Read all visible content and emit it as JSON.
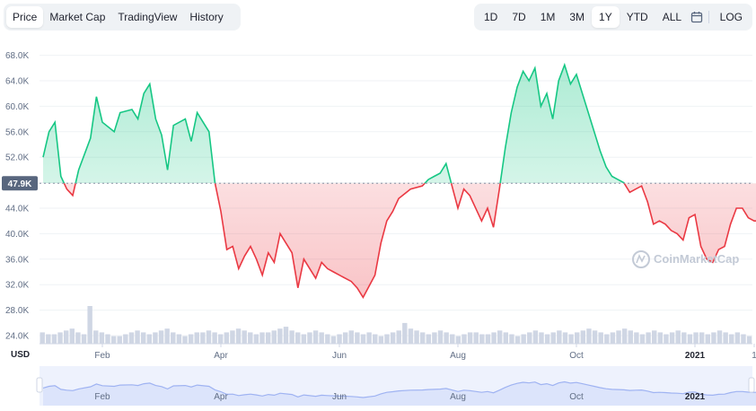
{
  "tabs": {
    "left": [
      "Price",
      "Market Cap",
      "TradingView",
      "History"
    ],
    "left_active": "Price",
    "right": [
      "1D",
      "7D",
      "1M",
      "3M",
      "1Y",
      "YTD",
      "ALL"
    ],
    "right_active": "1Y",
    "log_label": "LOG",
    "calendar_icon": "calendar-icon"
  },
  "watermark": "CoinMarketCap",
  "colors": {
    "up": "#16c784",
    "down": "#ea3943",
    "navigator": "#9fb3f2",
    "volume": "#cfd6e4"
  },
  "chart_data": {
    "type": "line",
    "currency_label": "USD",
    "baseline": 47.9,
    "baseline_label": "47.9K",
    "ylim": [
      24,
      70
    ],
    "y_ticks": [
      24,
      28,
      32,
      36,
      40,
      44,
      48,
      52,
      56,
      60,
      64,
      68
    ],
    "y_tick_labels": [
      "24.0K",
      "28.0K",
      "32.0K",
      "36.0K",
      "40.0K",
      "44.0K",
      "48.0K",
      "52.0K",
      "56.0K",
      "60.0K",
      "64.0K",
      "68.0K"
    ],
    "x_ticks": [
      {
        "label": "Feb",
        "x": 1.0,
        "bold": false
      },
      {
        "label": "Apr",
        "x": 3.0,
        "bold": false
      },
      {
        "label": "Jun",
        "x": 5.0,
        "bold": false
      },
      {
        "label": "Aug",
        "x": 7.0,
        "bold": false
      },
      {
        "label": "Oct",
        "x": 9.0,
        "bold": false
      },
      {
        "label": "2021",
        "x": 11.0,
        "bold": true
      },
      {
        "label": "1",
        "x": 12.0,
        "bold": false
      }
    ],
    "series": [
      {
        "x": [
          0.0,
          0.1,
          0.2,
          0.3,
          0.4,
          0.5,
          0.6,
          0.8,
          0.9,
          1.0,
          1.2,
          1.3,
          1.5,
          1.6,
          1.7,
          1.8,
          1.9,
          2.0,
          2.1,
          2.2,
          2.4,
          2.5,
          2.6,
          2.8,
          2.9,
          3.0,
          3.1,
          3.2,
          3.3,
          3.4,
          3.5,
          3.6,
          3.7,
          3.8,
          3.9,
          4.0,
          4.2,
          4.3,
          4.4,
          4.6,
          4.7,
          4.8,
          4.9,
          5.0,
          5.2,
          5.3,
          5.4,
          5.6,
          5.7,
          5.8,
          5.9,
          6.0,
          6.2,
          6.4,
          6.5,
          6.6,
          6.7,
          6.8,
          6.9,
          7.0,
          7.1,
          7.2,
          7.4,
          7.5,
          7.6,
          7.7,
          7.8,
          7.9,
          8.0,
          8.1,
          8.2,
          8.3,
          8.4,
          8.5,
          8.6,
          8.7,
          8.8,
          8.9,
          9.0,
          9.1,
          9.2,
          9.3,
          9.4,
          9.5,
          9.6,
          9.7,
          9.8,
          9.9,
          10.0,
          10.1,
          10.2,
          10.3,
          10.4,
          10.5,
          10.6,
          10.7,
          10.8,
          10.9,
          11.0,
          11.1,
          11.2,
          11.3,
          11.4,
          11.5,
          11.6,
          11.7,
          11.8,
          11.9,
          12.0,
          12.1,
          12.2,
          12.3,
          12.4
        ],
        "y": [
          52.0,
          56.0,
          57.5,
          49.0,
          47.0,
          46.0,
          50.0,
          55.0,
          61.5,
          57.5,
          56.0,
          59.0,
          59.5,
          58.0,
          62.0,
          63.5,
          58.0,
          55.5,
          50.0,
          57.0,
          58.0,
          54.5,
          59.0,
          56.0,
          48.0,
          43.5,
          37.5,
          38.0,
          34.5,
          36.5,
          38.0,
          36.0,
          33.5,
          37.0,
          35.5,
          40.0,
          37.0,
          31.5,
          36.0,
          33.0,
          35.5,
          34.5,
          34.0,
          33.5,
          32.5,
          31.5,
          30.0,
          33.5,
          38.5,
          42.0,
          43.5,
          45.5,
          47.0,
          47.5,
          48.5,
          49.0,
          49.5,
          51.0,
          47.5,
          44.0,
          47.0,
          46.0,
          42.0,
          44.0,
          41.0,
          47.0,
          53.5,
          59.0,
          63.0,
          65.5,
          64.0,
          66.0,
          60.0,
          62.0,
          58.0,
          64.0,
          66.5,
          63.5,
          65.0,
          62.0,
          59.0,
          56.0,
          53.0,
          50.5,
          49.0,
          48.5,
          48.0,
          46.5,
          47.0,
          47.5,
          45.0,
          41.5,
          42.0,
          41.5,
          40.5,
          40.0,
          39.0,
          42.5,
          43.0,
          38.0,
          36.0,
          35.5,
          37.5,
          38.0,
          41.5,
          44.0,
          44.0,
          42.5,
          42.0,
          42.0,
          42.5,
          42.0,
          42.0
        ]
      }
    ],
    "volume": [
      0.3,
      0.25,
      0.25,
      0.3,
      0.35,
      0.4,
      0.3,
      0.25,
      1.0,
      0.35,
      0.3,
      0.25,
      0.2,
      0.2,
      0.25,
      0.3,
      0.35,
      0.3,
      0.25,
      0.3,
      0.35,
      0.4,
      0.3,
      0.25,
      0.2,
      0.25,
      0.3,
      0.3,
      0.35,
      0.3,
      0.25,
      0.3,
      0.35,
      0.4,
      0.35,
      0.3,
      0.25,
      0.3,
      0.3,
      0.35,
      0.4,
      0.45,
      0.35,
      0.3,
      0.25,
      0.3,
      0.35,
      0.3,
      0.25,
      0.2,
      0.25,
      0.3,
      0.35,
      0.3,
      0.25,
      0.3,
      0.25,
      0.2,
      0.25,
      0.3,
      0.35,
      0.55,
      0.4,
      0.35,
      0.3,
      0.25,
      0.3,
      0.35,
      0.3,
      0.25,
      0.2,
      0.25,
      0.3,
      0.3,
      0.25,
      0.25,
      0.3,
      0.35,
      0.3,
      0.25,
      0.2,
      0.25,
      0.3,
      0.35,
      0.3,
      0.25,
      0.3,
      0.35,
      0.3,
      0.25,
      0.3,
      0.35,
      0.4,
      0.35,
      0.3,
      0.25,
      0.3,
      0.35,
      0.4,
      0.35,
      0.3,
      0.25,
      0.3,
      0.35,
      0.3,
      0.25,
      0.3,
      0.35,
      0.3,
      0.25,
      0.3,
      0.3,
      0.25,
      0.3,
      0.35,
      0.3,
      0.25,
      0.3,
      0.25,
      0.2
    ]
  }
}
